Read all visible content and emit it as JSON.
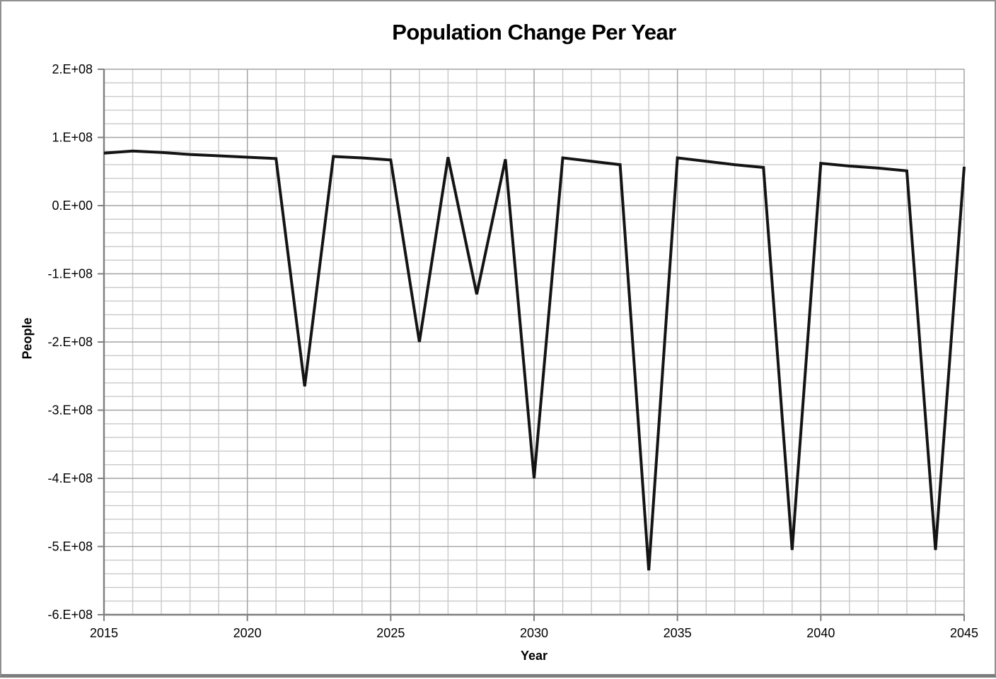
{
  "figure": {
    "title": "Population Change Per Year",
    "x_axis_title": "Year",
    "y_axis_title": "People"
  },
  "chart_data": {
    "type": "line",
    "title": "Population Change Per Year",
    "xlabel": "Year",
    "ylabel": "People",
    "x": [
      2015,
      2016,
      2017,
      2018,
      2019,
      2020,
      2021,
      2022,
      2023,
      2024,
      2025,
      2026,
      2027,
      2028,
      2029,
      2030,
      2031,
      2032,
      2033,
      2034,
      2035,
      2036,
      2037,
      2038,
      2039,
      2040,
      2041,
      2042,
      2043,
      2044,
      2045
    ],
    "values": [
      77000000,
      80000000,
      78000000,
      75000000,
      73000000,
      71000000,
      69000000,
      -265000000,
      72000000,
      70000000,
      67000000,
      -200000000,
      71000000,
      -130000000,
      68000000,
      -400000000,
      70000000,
      65000000,
      60000000,
      -535000000,
      70000000,
      65000000,
      60000000,
      56000000,
      -505000000,
      62000000,
      58000000,
      55000000,
      51000000,
      -505000000,
      57000000
    ],
    "xlim": [
      2015,
      2045
    ],
    "ylim": [
      -600000000,
      200000000
    ],
    "x_major_ticks": [
      2015,
      2020,
      2025,
      2030,
      2035,
      2040,
      2045
    ],
    "x_tick_labels": [
      "2015",
      "2020",
      "2025",
      "2030",
      "2035",
      "2040",
      "2045"
    ],
    "x_minor_step": 1,
    "y_major_ticks": [
      200000000,
      100000000,
      0,
      -100000000,
      -200000000,
      -300000000,
      -400000000,
      -500000000,
      -600000000
    ],
    "y_tick_labels": [
      "2.E+08",
      "1.E+08",
      "0.E+00",
      "-1.E+08",
      "-2.E+08",
      "-3.E+08",
      "-4.E+08",
      "-5.E+08",
      "-6.E+08"
    ],
    "y_minor_step": 20000000,
    "grid": {
      "major": true,
      "minor": true
    },
    "legend": "none",
    "series_color": "#141414",
    "colors": {
      "major_gridline": "#a3a3a3",
      "minor_gridline": "#c9c9c9",
      "axis_line": "#7f7f7f",
      "tick_label": "#000000"
    }
  }
}
